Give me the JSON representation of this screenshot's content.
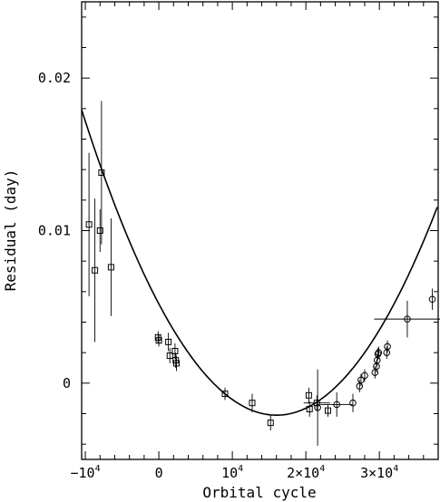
{
  "chart_data": {
    "type": "scatter",
    "xlabel": "Orbital cycle",
    "ylabel": "Residual (day)",
    "xlim": [
      -10500,
      38000
    ],
    "ylim": [
      -0.005,
      0.025
    ],
    "x_tick_labels": [
      {
        "value": -10000,
        "base": "−10",
        "exp": "4"
      },
      {
        "value": 0,
        "base": "0",
        "exp": ""
      },
      {
        "value": 10000,
        "base": "10",
        "exp": "4"
      },
      {
        "value": 20000,
        "base": "2×10",
        "exp": "4"
      },
      {
        "value": 30000,
        "base": "3×10",
        "exp": "4"
      }
    ],
    "y_tick_labels": [
      {
        "value": 0,
        "label": "0"
      },
      {
        "value": 0.01,
        "label": "0.01"
      },
      {
        "value": 0.02,
        "label": "0.02"
      }
    ],
    "x_minor_step": 2000,
    "y_minor_step": 0.002,
    "fit_curve": {
      "form": "quadratic",
      "vertex_x": 16000,
      "vertex_y": -0.0021,
      "curvature": 2.85e-11
    },
    "series": [
      {
        "marker": "square",
        "points": [
          {
            "x": -9500,
            "y": 0.0104,
            "yerr": 0.0047
          },
          {
            "x": -8700,
            "y": 0.0074,
            "yerr": 0.0047
          },
          {
            "x": -8000,
            "y": 0.01,
            "yerr": 0.0014
          },
          {
            "x": -7800,
            "y": 0.0138,
            "yerr": 0.0047
          },
          {
            "x": -6500,
            "y": 0.0076,
            "yerr": 0.0032
          },
          {
            "x": -100,
            "y": 0.003,
            "yerr": 0.0004
          },
          {
            "x": 0,
            "y": 0.0028,
            "yerr": 0.0004
          },
          {
            "x": 1300,
            "y": 0.0027,
            "yerr": 0.0006
          },
          {
            "x": 1500,
            "y": 0.0018,
            "yerr": 0.0005
          },
          {
            "x": 2200,
            "y": 0.0021,
            "yerr": 0.0005
          },
          {
            "x": 2300,
            "y": 0.0015,
            "yerr": 0.0005
          },
          {
            "x": 2400,
            "y": 0.0013,
            "yerr": 0.0005
          },
          {
            "x": 9000,
            "y": -0.0007,
            "yerr": 0.0004
          },
          {
            "x": 12700,
            "y": -0.0013,
            "yerr": 0.0006
          },
          {
            "x": 15200,
            "y": -0.0026,
            "yerr": 0.0005
          },
          {
            "x": 20400,
            "y": -0.0008,
            "yerr": 0.0005
          },
          {
            "x": 20500,
            "y": -0.0017,
            "yerr": 0.0005
          },
          {
            "x": 21500,
            "y": -0.0013,
            "yerr": 0.0005,
            "xerr": 1800
          },
          {
            "x": 23000,
            "y": -0.0018,
            "yerr": 0.0004
          }
        ]
      },
      {
        "marker": "circle",
        "points": [
          {
            "x": 21600,
            "y": -0.0016,
            "yerr": 0.0025
          },
          {
            "x": 24200,
            "y": -0.0014,
            "yerr": 0.0008,
            "xerr": 2200
          },
          {
            "x": 26400,
            "y": -0.0013,
            "yerr": 0.0006
          },
          {
            "x": 27300,
            "y": -0.0002,
            "yerr": 0.0004
          },
          {
            "x": 27500,
            "y": 0.0002,
            "yerr": 0.0004
          },
          {
            "x": 28000,
            "y": 0.0005,
            "yerr": 0.0004
          },
          {
            "x": 29400,
            "y": 0.0007,
            "yerr": 0.0004
          },
          {
            "x": 29600,
            "y": 0.0011,
            "yerr": 0.0004
          },
          {
            "x": 29700,
            "y": 0.0015,
            "yerr": 0.0004
          },
          {
            "x": 29800,
            "y": 0.0019,
            "yerr": 0.0004
          },
          {
            "x": 29900,
            "y": 0.002,
            "yerr": 0.0004
          },
          {
            "x": 31000,
            "y": 0.002,
            "yerr": 0.0004
          },
          {
            "x": 31100,
            "y": 0.0024,
            "yerr": 0.0004
          },
          {
            "x": 33800,
            "y": 0.0042,
            "yerr": 0.0012,
            "xerr": 4500
          },
          {
            "x": 37200,
            "y": 0.0055,
            "yerr": 0.0007
          }
        ]
      }
    ]
  }
}
